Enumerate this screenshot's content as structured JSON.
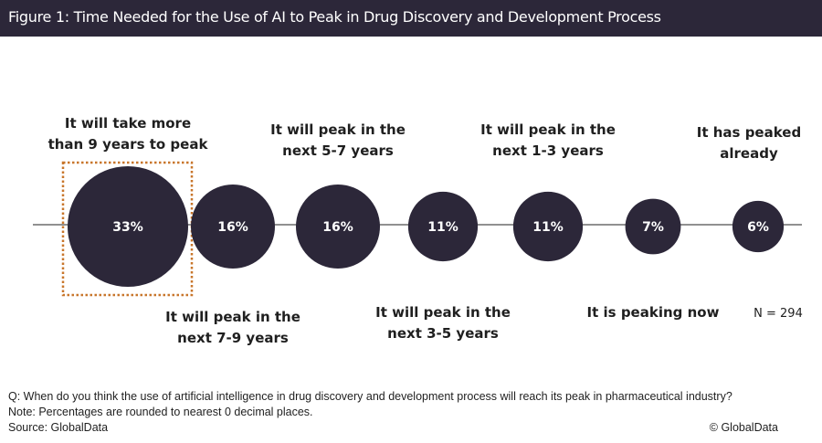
{
  "header": {
    "title": "Figure 1: Time Needed for the Use of AI to Peak in Drug Discovery and Development Process"
  },
  "chart_data": {
    "type": "bubble-timeline",
    "title": "Figure 1: Time Needed for the Use of AI to Peak in Drug Discovery and Development Process",
    "categories": [
      {
        "label_lines": [
          "It will take more",
          "than 9 years to peak"
        ],
        "value": 33,
        "value_label": "33%",
        "label_position": "above",
        "highlighted": true
      },
      {
        "label_lines": [
          "It will peak in the",
          "next 7-9 years"
        ],
        "value": 16,
        "value_label": "16%",
        "label_position": "below",
        "highlighted": false
      },
      {
        "label_lines": [
          "It will peak in the",
          "next 5-7 years"
        ],
        "value": 16,
        "value_label": "16%",
        "label_position": "above",
        "highlighted": false
      },
      {
        "label_lines": [
          "It will peak in the",
          "next 3-5 years"
        ],
        "value": 11,
        "value_label": "11%",
        "label_position": "below",
        "highlighted": false
      },
      {
        "label_lines": [
          "It will peak in the",
          "next 1-3 years"
        ],
        "value": 11,
        "value_label": "11%",
        "label_position": "above",
        "highlighted": false
      },
      {
        "label_lines": [
          "It is peaking now"
        ],
        "value": 7,
        "value_label": "7%",
        "label_position": "below",
        "highlighted": false
      },
      {
        "label_lines": [
          "It has peaked",
          "already"
        ],
        "value": 6,
        "value_label": "6%",
        "label_position": "above",
        "highlighted": false
      }
    ],
    "unit": "%",
    "sample_size_label": "N = 294",
    "colors": {
      "bubble": "#2c2739",
      "axis": "#6b6b6b",
      "highlight_box": "#c8762b",
      "value_text": "#ffffff"
    }
  },
  "footer": {
    "question": "Q: When do you think the use of artificial intelligence in drug discovery and development process will reach its peak in pharmaceutical industry?",
    "note": "Note: Percentages are rounded to nearest 0 decimal places.",
    "source": "Source: GlobalData",
    "copyright": "© GlobalData"
  }
}
